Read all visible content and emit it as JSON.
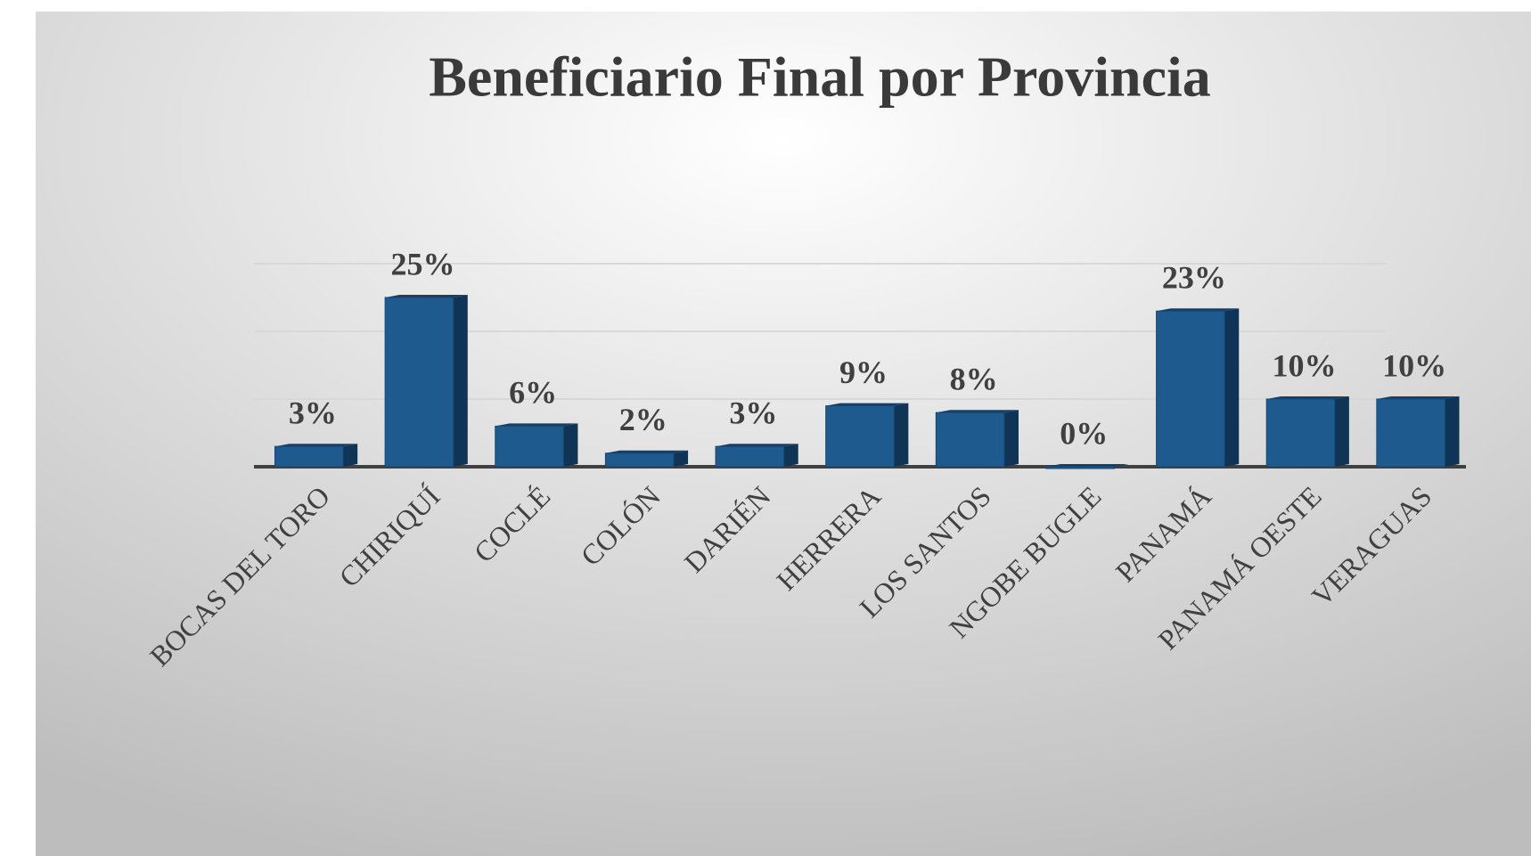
{
  "chart_data": {
    "type": "bar",
    "title": "Beneficiario Final por Provincia",
    "categories": [
      "BOCAS DEL TORO",
      "CHIRIQUÍ",
      "COCLÉ",
      "COLÓN",
      "DARIÉN",
      "HERRERA",
      "LOS SANTOS",
      "NGOBE BUGLE",
      "PANAMÁ",
      "PANAMÁ OESTE",
      "VERAGUAS"
    ],
    "values": [
      3,
      25,
      6,
      2,
      3,
      9,
      8,
      0,
      23,
      10,
      10
    ],
    "value_labels": [
      "3%",
      "25%",
      "6%",
      "2%",
      "3%",
      "9%",
      "8%",
      "0%",
      "23%",
      "10%",
      "10%"
    ],
    "color": "#1f5a8f",
    "ylim": [
      0,
      30
    ],
    "yticks": [
      10,
      20,
      30
    ],
    "grid": true
  }
}
